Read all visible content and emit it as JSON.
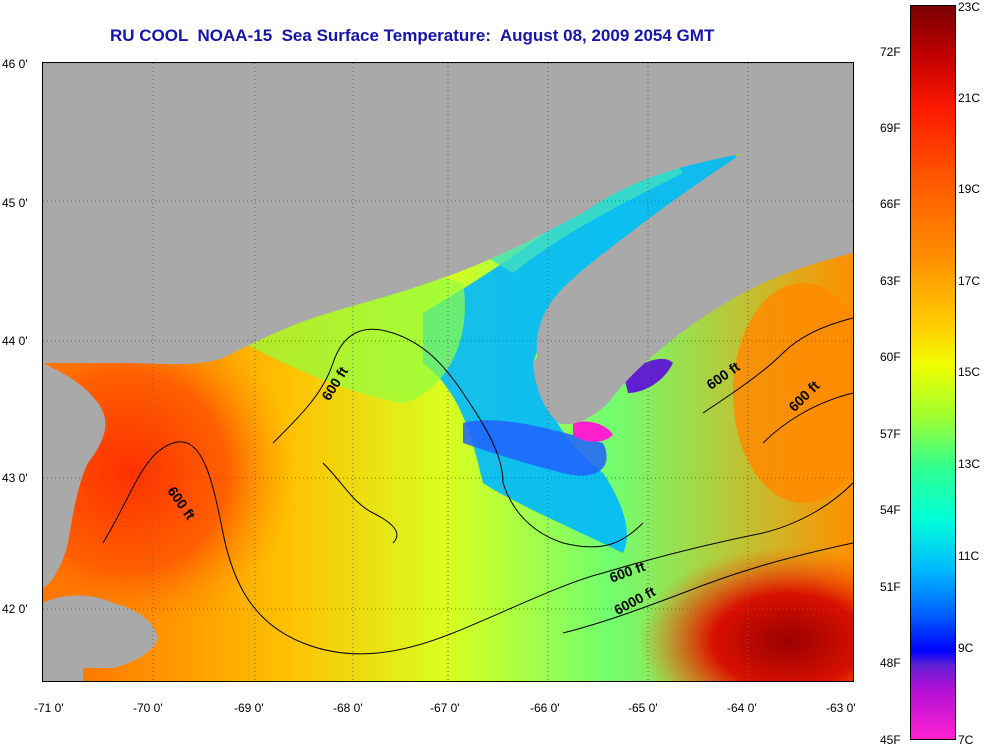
{
  "title": "RU COOL  NOAA-15  Sea Surface Temperature:  August 08, 2009 2054 GMT",
  "latitude_labels": [
    "46 0'",
    "45 0'",
    "44 0'",
    "43 0'",
    "42 0'"
  ],
  "longitude_labels": [
    "-71 0'",
    "-70 0'",
    "-69 0'",
    "-68 0'",
    "-67 0'",
    "-66 0'",
    "-65 0'",
    "-64 0'",
    "-63 0'"
  ],
  "colorbar": {
    "fahrenheit": [
      "72F",
      "69F",
      "66F",
      "63F",
      "60F",
      "57F",
      "54F",
      "51F",
      "48F",
      "45F"
    ],
    "celsius": [
      "23C",
      "21C",
      "19C",
      "17C",
      "15C",
      "13C",
      "11C",
      "9C",
      "7C"
    ]
  },
  "contours": [
    "600 ft",
    "600 ft",
    "600 ft",
    "600 ft",
    "600 ft",
    "6000 ft"
  ],
  "colors": {
    "land": "#a9a9a9",
    "title": "#1515a8",
    "warm": "#e02000",
    "cool": "#00a0ff",
    "coldest": "#ff20d0"
  }
}
